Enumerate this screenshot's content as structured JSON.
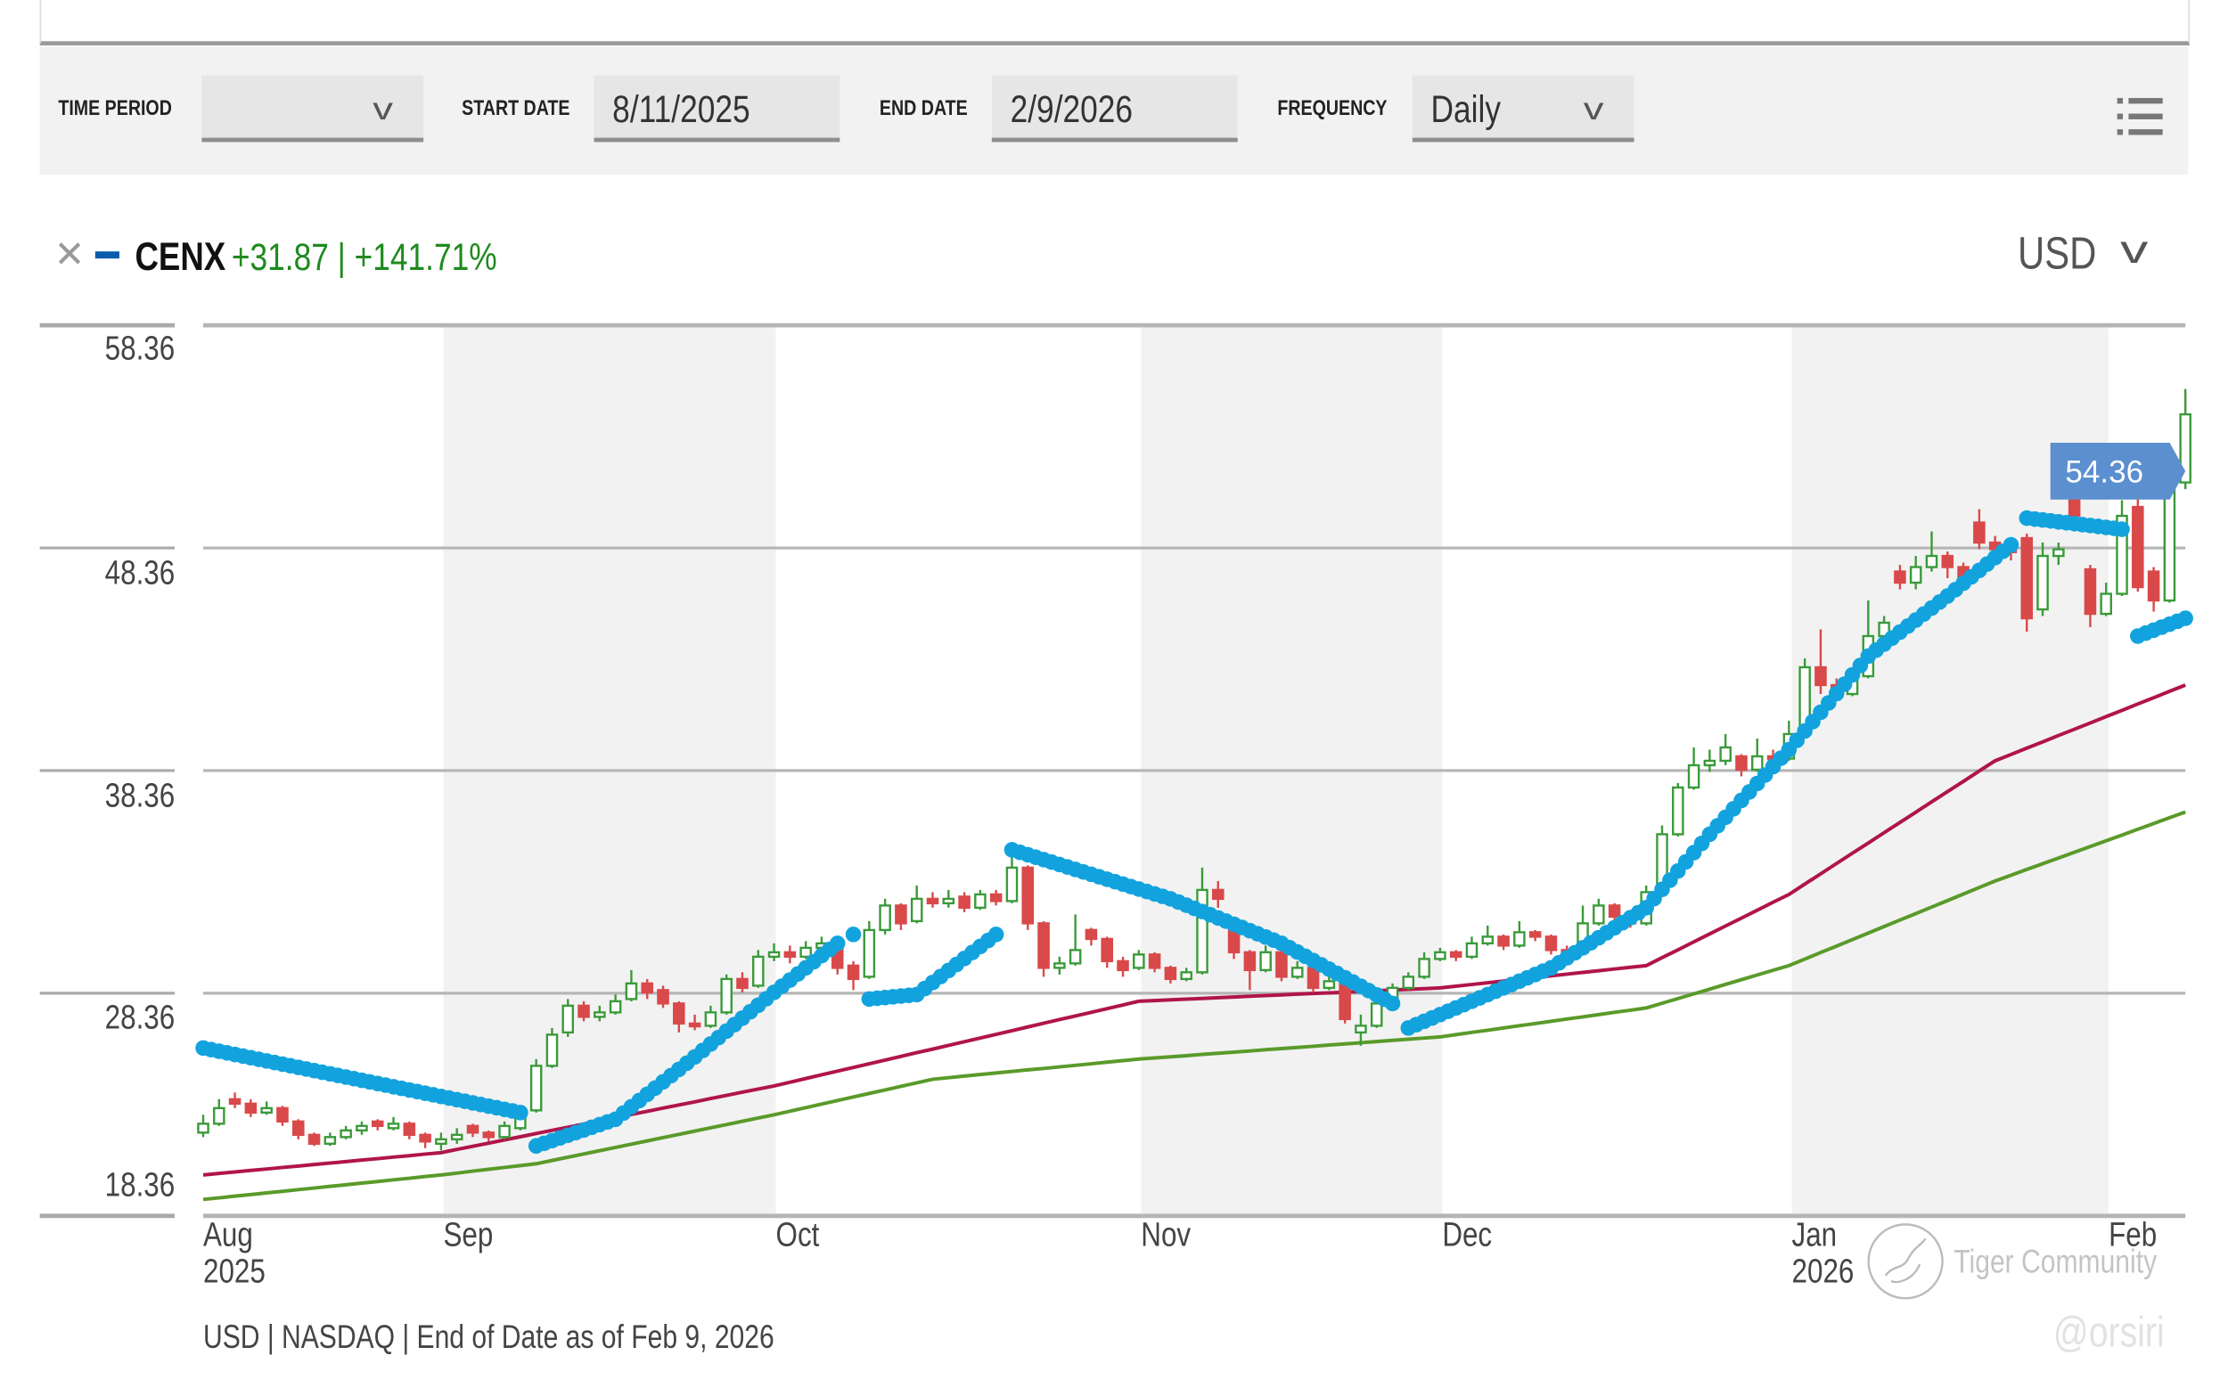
{
  "controls": {
    "time_period_label": "TIME PERIOD",
    "time_period_value": "",
    "start_date_label": "START DATE",
    "start_date": "8/11/2025",
    "end_date_label": "END DATE",
    "end_date": "2/9/2026",
    "frequency_label": "FREQUENCY",
    "frequency": "Daily",
    "menu_icon": "list-icon"
  },
  "legend": {
    "remove_icon": "close-icon",
    "symbol": "CENX",
    "change_text": "+31.87 | +141.71%",
    "line_color": "#0b5cad",
    "change_color": "#1e8a1e"
  },
  "currency": "USD",
  "footer": "USD | NASDAQ | End of Date as of Feb 9, 2026",
  "watermark": {
    "brand": "Tiger Community",
    "handle": "@orsiri"
  },
  "chart_data": {
    "type": "candlestick",
    "title": "",
    "start_date": "2025-08-11",
    "end_date": "2026-02-09",
    "frequency": "daily",
    "ylim": [
      18.36,
      58.36
    ],
    "y_ticks": [
      "58.36",
      "48.36",
      "38.36",
      "28.36",
      "18.36"
    ],
    "x_ticks": [
      {
        "label": "Aug",
        "sub": "2025",
        "date": "2025-08-11"
      },
      {
        "label": "Sep",
        "sub": "",
        "date": "2025-09-02"
      },
      {
        "label": "Oct",
        "sub": "",
        "date": "2025-10-01"
      },
      {
        "label": "Nov",
        "sub": "",
        "date": "2025-11-03"
      },
      {
        "label": "Dec",
        "sub": "",
        "date": "2025-12-01"
      },
      {
        "label": "Jan",
        "sub": "2026",
        "date": "2026-01-02"
      },
      {
        "label": "Feb",
        "sub": "",
        "date": "2026-02-02"
      }
    ],
    "shaded_months": [
      "Sep",
      "Nov",
      "Jan"
    ],
    "grid": true,
    "last_price_label": "54.36",
    "colors": {
      "up": "#3a9a3a",
      "down": "#d9494a",
      "sar": "#12a3de",
      "ma_short": "#b0154a",
      "ma_long": "#5a9a2a",
      "price_tag": "#5b8fcf",
      "shade": "#f2f2f2"
    },
    "candles_ohlc": [
      [
        22.1,
        22.9,
        21.9,
        22.5
      ],
      [
        22.5,
        23.6,
        22.4,
        23.2
      ],
      [
        23.6,
        23.9,
        23.2,
        23.4
      ],
      [
        23.4,
        23.6,
        22.8,
        23.0
      ],
      [
        23.0,
        23.5,
        22.9,
        23.2
      ],
      [
        23.2,
        23.3,
        22.4,
        22.6
      ],
      [
        22.6,
        22.7,
        21.8,
        22.0
      ],
      [
        22.0,
        22.1,
        21.5,
        21.6
      ],
      [
        21.6,
        22.1,
        21.5,
        21.9
      ],
      [
        21.9,
        22.4,
        21.8,
        22.2
      ],
      [
        22.2,
        22.6,
        22.0,
        22.4
      ],
      [
        22.6,
        22.7,
        22.2,
        22.4
      ],
      [
        22.3,
        22.8,
        22.2,
        22.5
      ],
      [
        22.5,
        22.6,
        21.8,
        22.0
      ],
      [
        22.0,
        22.1,
        21.4,
        21.7
      ],
      [
        21.6,
        22.1,
        21.3,
        21.8
      ],
      [
        21.8,
        22.3,
        21.6,
        22.0
      ],
      [
        22.4,
        22.5,
        21.9,
        22.1
      ],
      [
        22.1,
        22.2,
        21.7,
        21.9
      ],
      [
        21.9,
        22.6,
        21.8,
        22.4
      ],
      [
        22.3,
        23.3,
        22.2,
        23.0
      ],
      [
        23.1,
        25.4,
        23.0,
        25.1
      ],
      [
        25.1,
        26.8,
        25.0,
        26.5
      ],
      [
        26.6,
        28.1,
        26.4,
        27.8
      ],
      [
        27.8,
        28.0,
        27.1,
        27.3
      ],
      [
        27.3,
        27.8,
        27.1,
        27.5
      ],
      [
        27.5,
        28.3,
        27.4,
        28.0
      ],
      [
        28.1,
        29.4,
        28.0,
        28.8
      ],
      [
        28.8,
        29.0,
        28.1,
        28.4
      ],
      [
        28.5,
        28.7,
        27.7,
        27.9
      ],
      [
        27.9,
        28.0,
        26.6,
        27.0
      ],
      [
        27.0,
        27.4,
        26.7,
        26.9
      ],
      [
        26.9,
        27.8,
        26.8,
        27.5
      ],
      [
        27.5,
        29.2,
        27.4,
        29.0
      ],
      [
        29.0,
        29.3,
        28.4,
        28.6
      ],
      [
        28.7,
        30.3,
        28.6,
        30.0
      ],
      [
        30.0,
        30.6,
        29.8,
        30.2
      ],
      [
        30.2,
        30.5,
        29.7,
        30.0
      ],
      [
        30.0,
        30.7,
        29.9,
        30.4
      ],
      [
        30.4,
        30.9,
        30.2,
        30.6
      ],
      [
        30.6,
        30.7,
        29.2,
        29.5
      ],
      [
        29.6,
        29.8,
        28.5,
        29.0
      ],
      [
        29.1,
        31.6,
        29.0,
        31.2
      ],
      [
        31.2,
        32.6,
        31.0,
        32.3
      ],
      [
        32.3,
        32.4,
        31.2,
        31.5
      ],
      [
        31.6,
        33.2,
        31.5,
        32.6
      ],
      [
        32.6,
        32.9,
        32.2,
        32.4
      ],
      [
        32.4,
        33.0,
        32.2,
        32.6
      ],
      [
        32.7,
        32.9,
        32.0,
        32.2
      ],
      [
        32.2,
        33.0,
        32.1,
        32.8
      ],
      [
        32.8,
        33.0,
        32.3,
        32.5
      ],
      [
        32.5,
        34.6,
        32.4,
        34.0
      ],
      [
        34.0,
        34.1,
        31.2,
        31.5
      ],
      [
        31.5,
        31.6,
        29.1,
        29.5
      ],
      [
        29.5,
        30.0,
        29.2,
        29.7
      ],
      [
        29.7,
        31.9,
        29.6,
        30.3
      ],
      [
        31.2,
        31.3,
        30.5,
        30.8
      ],
      [
        30.8,
        30.9,
        29.5,
        29.8
      ],
      [
        29.8,
        30.0,
        29.1,
        29.4
      ],
      [
        29.5,
        30.3,
        29.4,
        30.1
      ],
      [
        30.1,
        30.2,
        29.3,
        29.5
      ],
      [
        29.5,
        29.6,
        28.8,
        29.0
      ],
      [
        29.0,
        29.5,
        28.9,
        29.3
      ],
      [
        29.3,
        34.0,
        29.2,
        33.0
      ],
      [
        33.0,
        33.4,
        32.2,
        32.6
      ],
      [
        31.2,
        31.4,
        29.9,
        30.2
      ],
      [
        30.2,
        30.3,
        28.5,
        29.4
      ],
      [
        29.4,
        30.5,
        29.3,
        30.2
      ],
      [
        30.2,
        30.3,
        28.9,
        29.1
      ],
      [
        29.1,
        29.8,
        29.0,
        29.5
      ],
      [
        29.5,
        29.6,
        28.4,
        28.6
      ],
      [
        28.6,
        29.4,
        28.5,
        28.9
      ],
      [
        28.9,
        29.0,
        27.0,
        27.2
      ],
      [
        26.6,
        27.4,
        26.0,
        26.9
      ],
      [
        26.9,
        28.2,
        26.8,
        27.9
      ],
      [
        27.9,
        28.8,
        27.8,
        28.6
      ],
      [
        28.6,
        29.3,
        28.5,
        29.1
      ],
      [
        29.1,
        30.2,
        29.0,
        29.9
      ],
      [
        29.9,
        30.4,
        29.8,
        30.2
      ],
      [
        30.2,
        30.3,
        29.8,
        30.0
      ],
      [
        30.0,
        30.9,
        29.9,
        30.6
      ],
      [
        30.6,
        31.4,
        30.5,
        30.9
      ],
      [
        30.9,
        31.0,
        30.3,
        30.5
      ],
      [
        30.5,
        31.6,
        30.4,
        31.1
      ],
      [
        31.1,
        31.2,
        30.7,
        30.9
      ],
      [
        30.9,
        31.0,
        30.1,
        30.3
      ],
      [
        30.3,
        30.5,
        30.0,
        30.2
      ],
      [
        30.2,
        32.3,
        30.1,
        31.5
      ],
      [
        31.5,
        32.6,
        31.4,
        32.3
      ],
      [
        32.3,
        32.4,
        31.6,
        31.8
      ],
      [
        31.8,
        32.0,
        31.3,
        31.5
      ],
      [
        31.5,
        33.2,
        31.4,
        32.9
      ],
      [
        32.9,
        35.9,
        32.8,
        35.5
      ],
      [
        35.5,
        37.8,
        35.4,
        37.6
      ],
      [
        37.6,
        39.4,
        37.5,
        38.6
      ],
      [
        38.6,
        39.3,
        38.3,
        38.8
      ],
      [
        38.8,
        40.0,
        38.6,
        39.4
      ],
      [
        39.0,
        39.1,
        38.1,
        38.4
      ],
      [
        38.4,
        39.8,
        38.3,
        39.0
      ],
      [
        39.0,
        39.3,
        38.6,
        38.9
      ],
      [
        38.9,
        40.6,
        38.8,
        40.0
      ],
      [
        40.0,
        43.4,
        39.9,
        43.0
      ],
      [
        43.0,
        44.7,
        41.8,
        42.2
      ],
      [
        42.2,
        42.5,
        41.5,
        41.8
      ],
      [
        41.8,
        42.9,
        41.7,
        42.6
      ],
      [
        42.6,
        46.0,
        42.5,
        44.4
      ],
      [
        44.4,
        45.3,
        43.9,
        45.0
      ],
      [
        47.3,
        47.6,
        46.5,
        46.8
      ],
      [
        46.8,
        48.0,
        46.5,
        47.5
      ],
      [
        47.5,
        49.1,
        47.3,
        48.0
      ],
      [
        48.0,
        48.2,
        47.0,
        47.5
      ],
      [
        47.5,
        47.7,
        46.6,
        47.0
      ],
      [
        49.5,
        50.1,
        48.3,
        48.6
      ],
      [
        48.6,
        48.9,
        47.9,
        48.3
      ],
      [
        48.3,
        48.7,
        47.8,
        48.2
      ],
      [
        48.8,
        49.0,
        44.6,
        45.2
      ],
      [
        45.6,
        48.6,
        45.3,
        48.0
      ],
      [
        48.0,
        48.6,
        47.6,
        48.3
      ],
      [
        51.0,
        51.3,
        49.5,
        49.8
      ],
      [
        47.4,
        47.6,
        44.8,
        45.4
      ],
      [
        45.4,
        46.8,
        45.3,
        46.3
      ],
      [
        46.3,
        50.5,
        46.2,
        49.8
      ],
      [
        50.2,
        50.6,
        46.4,
        46.6
      ],
      [
        47.3,
        47.5,
        45.5,
        46.0
      ],
      [
        46.0,
        51.6,
        45.9,
        51.3
      ],
      [
        51.3,
        55.5,
        51.0,
        54.36
      ]
    ],
    "parabolic_sar": [
      {
        "side": "above",
        "points": [
          [
            "2025-08-11",
            25.9
          ],
          [
            "2025-09-09",
            23.0
          ]
        ]
      },
      {
        "side": "below",
        "points": [
          [
            "2025-09-10",
            21.5
          ],
          [
            "2025-09-17",
            22.7
          ],
          [
            "2025-09-24",
            25.5
          ],
          [
            "2025-10-01",
            28.4
          ],
          [
            "2025-10-07",
            30.6
          ]
        ]
      },
      {
        "side": "above",
        "points": [
          [
            "2025-10-08",
            31.0
          ]
        ]
      },
      {
        "side": "below",
        "points": [
          [
            "2025-10-09",
            28.1
          ],
          [
            "2025-10-14",
            28.3
          ],
          [
            "2025-10-21",
            31.0
          ]
        ]
      },
      {
        "side": "above",
        "points": [
          [
            "2025-10-22",
            34.8
          ],
          [
            "2025-11-05",
            32.6
          ],
          [
            "2025-11-14",
            30.6
          ],
          [
            "2025-11-25",
            27.9
          ]
        ]
      },
      {
        "side": "below",
        "points": [
          [
            "2025-11-26",
            26.8
          ],
          [
            "2025-12-10",
            29.5
          ],
          [
            "2025-12-18",
            32.2
          ],
          [
            "2025-12-24",
            35.5
          ],
          [
            "2026-01-02",
            39.3
          ],
          [
            "2026-01-09",
            43.5
          ],
          [
            "2026-01-16",
            46.2
          ],
          [
            "2026-01-23",
            48.5
          ]
        ]
      },
      {
        "side": "above",
        "points": [
          [
            "2026-01-26",
            49.7
          ],
          [
            "2026-02-03",
            49.2
          ]
        ]
      },
      {
        "side": "below",
        "points": [
          [
            "2026-02-04",
            44.4
          ],
          [
            "2026-02-09",
            45.2
          ]
        ]
      }
    ],
    "moving_average_short": [
      [
        "2025-08-11",
        20.2
      ],
      [
        "2025-09-02",
        21.2
      ],
      [
        "2025-10-01",
        24.2
      ],
      [
        "2025-11-03",
        28.0
      ],
      [
        "2025-12-01",
        28.6
      ],
      [
        "2025-12-18",
        29.6
      ],
      [
        "2026-01-02",
        32.8
      ],
      [
        "2026-01-22",
        38.8
      ],
      [
        "2026-02-09",
        42.2
      ]
    ],
    "moving_average_long": [
      [
        "2025-08-11",
        19.1
      ],
      [
        "2025-09-02",
        20.2
      ],
      [
        "2025-09-10",
        20.7
      ],
      [
        "2025-10-01",
        22.9
      ],
      [
        "2025-10-15",
        24.5
      ],
      [
        "2025-11-03",
        25.4
      ],
      [
        "2025-12-01",
        26.4
      ],
      [
        "2025-12-18",
        27.7
      ],
      [
        "2026-01-02",
        29.6
      ],
      [
        "2026-01-22",
        33.4
      ],
      [
        "2026-02-09",
        36.5
      ]
    ]
  }
}
